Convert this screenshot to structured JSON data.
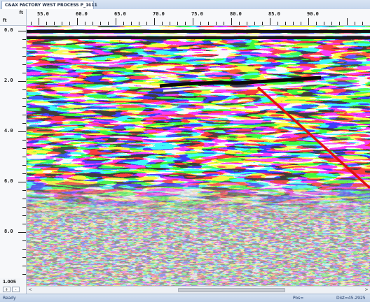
{
  "tab": {
    "title": "C&AX FACTORY WEST PROCESS P_1111",
    "close": "×"
  },
  "axes": {
    "x_unit": "ft",
    "y_unit": "ft",
    "x_labels": [
      "55.0",
      "60.0",
      "65.0",
      "70.0",
      "75.0",
      "80.0",
      "85.0",
      "90.0"
    ],
    "y_labels": [
      "0.0",
      "2.0",
      "4.0",
      "6.0",
      "8.0"
    ]
  },
  "zoom": {
    "value": "1.005",
    "plus": "+",
    "minus": "-"
  },
  "scroll": {
    "left_arrow": "<",
    "right_arrow": ">"
  },
  "status": {
    "left": "Ready",
    "mid": "Pos=",
    "right": "Dist=45.2925"
  },
  "overlay": {
    "line_color": "#e01010"
  }
}
